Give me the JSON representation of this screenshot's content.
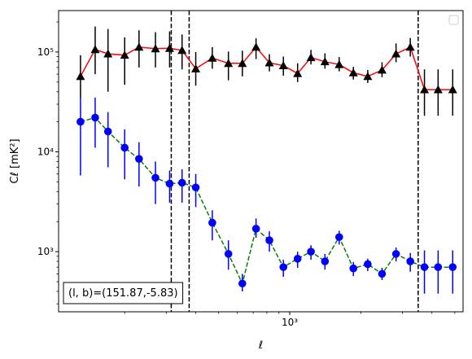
{
  "chart_data": {
    "type": "scatter",
    "title": "",
    "xlabel": "ℓ",
    "ylabel": "Cℓ  [mK²]",
    "xscale": "log",
    "yscale": "log",
    "xlim": [
      105,
      5420
    ],
    "ylim": [
      250,
      260000
    ],
    "grid": false,
    "legend_placement": "top-right",
    "x_tick_labels": [
      {
        "value": 1000,
        "label": "10³"
      }
    ],
    "y_tick_labels": [
      {
        "value": 1000,
        "label": "10³"
      },
      {
        "value": 10000,
        "label": "10⁴"
      },
      {
        "value": 100000,
        "label": "10⁵"
      }
    ],
    "annotation": "(l, b)=(151.87,-5.83)",
    "vlines": [
      315,
      375,
      3500
    ],
    "series": [
      {
        "color": "#ff0000",
        "marker": "triangle",
        "marker_color": "#000000",
        "errbar_color": "#000000",
        "linestyle": "solid",
        "x": [
          130,
          150,
          170,
          200,
          230,
          270,
          310,
          350,
          400,
          470,
          550,
          630,
          720,
          820,
          940,
          1080,
          1230,
          1410,
          1620,
          1860,
          2140,
          2460,
          2820,
          3240,
          3720,
          4250,
          4900
        ],
        "y": [
          57000,
          106000,
          96000,
          93000,
          112000,
          108000,
          109000,
          104000,
          68000,
          87000,
          77000,
          77000,
          112000,
          78000,
          73000,
          61000,
          88000,
          80000,
          75000,
          62000,
          57000,
          66000,
          96000,
          112000,
          42000,
          42000,
          42000
        ],
        "y_low": [
          34000,
          60000,
          40000,
          47000,
          70000,
          70000,
          70000,
          67000,
          46000,
          68000,
          52000,
          57000,
          85000,
          64000,
          58000,
          50000,
          75000,
          68000,
          64000,
          53000,
          49000,
          56000,
          79000,
          90000,
          23000,
          23000,
          23000
        ],
        "y_high": [
          93000,
          180000,
          170000,
          140000,
          165000,
          158000,
          161000,
          150000,
          100000,
          112000,
          101000,
          103000,
          137000,
          95000,
          90000,
          77000,
          105000,
          97000,
          89000,
          71000,
          66000,
          79000,
          122000,
          138000,
          67000,
          67000,
          67000
        ]
      },
      {
        "color": "#008000",
        "marker": "circle",
        "marker_color": "#0000ff",
        "errbar_color": "#0000ff",
        "linestyle": "dashed",
        "x": [
          130,
          150,
          170,
          200,
          230,
          270,
          310,
          350,
          400,
          470,
          550,
          630,
          720,
          820,
          940,
          1080,
          1230,
          1410,
          1620,
          1860,
          2140,
          2460,
          2820,
          3240,
          3720,
          4250,
          4900
        ],
        "y": [
          20000,
          22000,
          16000,
          11000,
          8500,
          5500,
          4800,
          4900,
          4400,
          1950,
          950,
          480,
          1700,
          1300,
          700,
          850,
          1000,
          800,
          1400,
          680,
          750,
          600,
          950,
          800,
          700,
          700,
          700
        ],
        "y_low": [
          5800,
          11000,
          7000,
          5300,
          4500,
          3000,
          3100,
          3100,
          2800,
          1300,
          660,
          400,
          1380,
          1000,
          560,
          690,
          830,
          660,
          1180,
          570,
          640,
          520,
          800,
          630,
          380,
          380,
          380
        ],
        "y_high": [
          34000,
          35000,
          25000,
          16800,
          12500,
          8000,
          6500,
          6700,
          6000,
          2600,
          1300,
          600,
          2150,
          1600,
          830,
          1000,
          1160,
          950,
          1620,
          790,
          850,
          690,
          1100,
          970,
          1030,
          1030,
          1030
        ]
      }
    ]
  }
}
